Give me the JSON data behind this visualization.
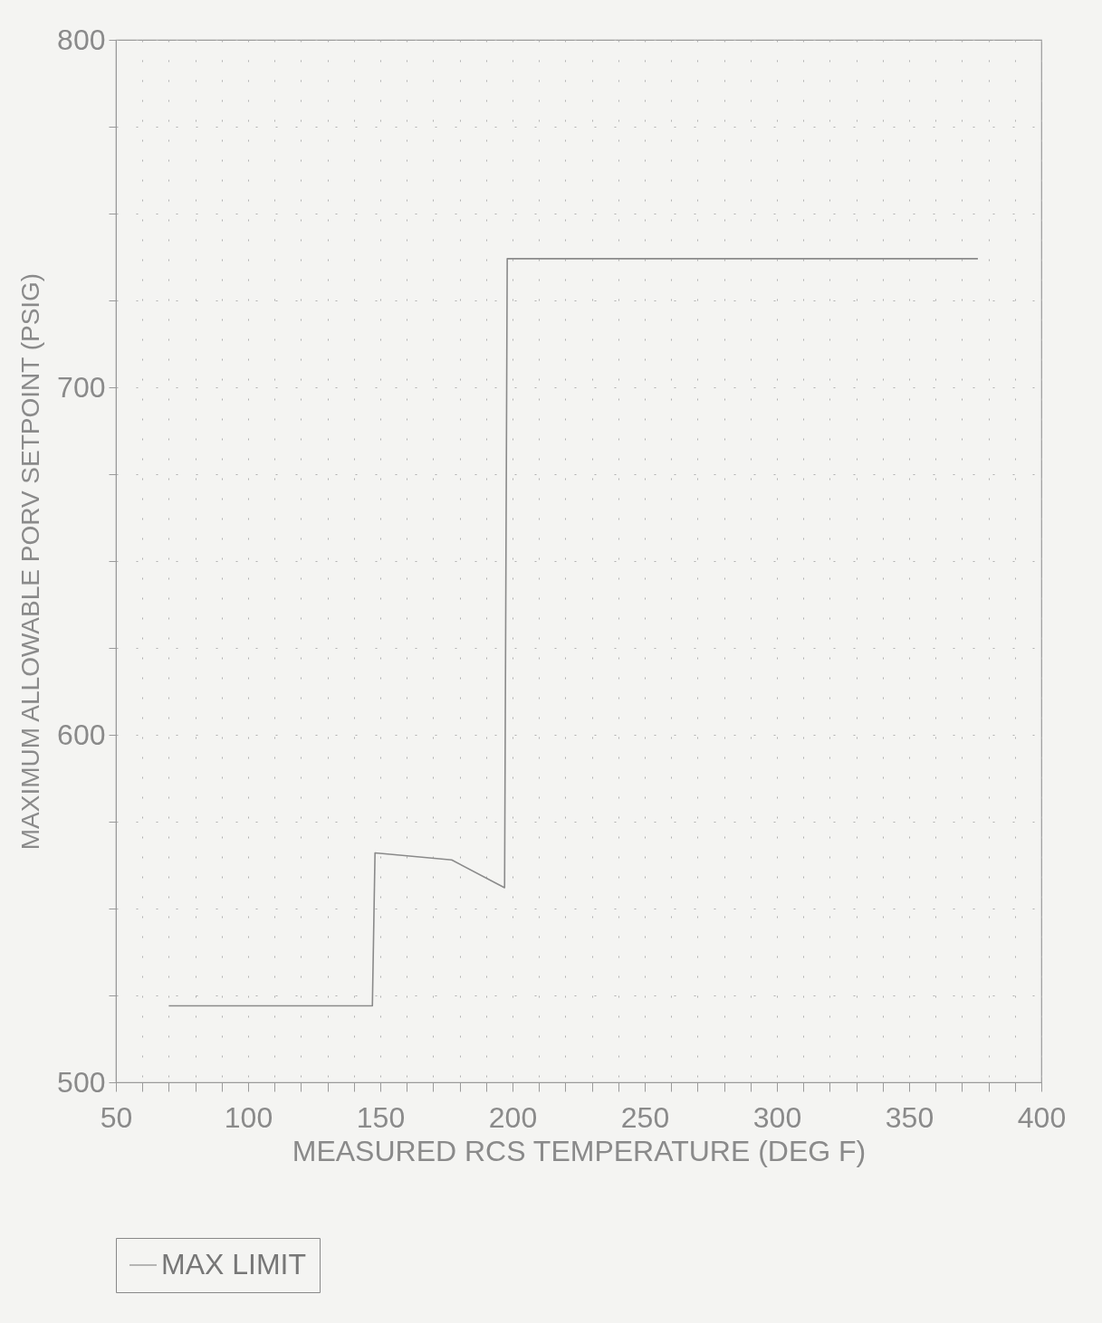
{
  "chart_data": {
    "type": "line",
    "xlabel": "MEASURED RCS TEMPERATURE (DEG F)",
    "ylabel": "MAXIMUM ALLOWABLE PORV SETPOINT (PSIG)",
    "series": [
      {
        "name": "MAX LIMIT",
        "color": "#8a8a8a",
        "x": [
          70,
          147,
          148,
          177,
          197,
          198,
          376
        ],
        "values": [
          522,
          522,
          566,
          564,
          556,
          737,
          737
        ]
      }
    ],
    "xlim": [
      50,
      400
    ],
    "xticks": [
      50,
      {
        "value": 60,
        "label": null
      },
      {
        "value": 70,
        "label": null
      },
      {
        "value": 80,
        "label": null
      },
      {
        "value": 90,
        "label": null
      },
      100,
      {
        "value": 110,
        "label": null
      },
      {
        "value": 120,
        "label": null
      },
      {
        "value": 130,
        "label": null
      },
      {
        "value": 140,
        "label": null
      },
      150,
      {
        "value": 160,
        "label": null
      },
      {
        "value": 170,
        "label": null
      },
      {
        "value": 180,
        "label": null
      },
      {
        "value": 190,
        "label": null
      },
      200,
      {
        "value": 210,
        "label": null
      },
      {
        "value": 220,
        "label": null
      },
      {
        "value": 230,
        "label": null
      },
      {
        "value": 240,
        "label": null
      },
      250,
      {
        "value": 260,
        "label": null
      },
      {
        "value": 270,
        "label": null
      },
      {
        "value": 280,
        "label": null
      },
      {
        "value": 290,
        "label": null
      },
      300,
      {
        "value": 310,
        "label": null
      },
      {
        "value": 320,
        "label": null
      },
      {
        "value": 330,
        "label": null
      },
      {
        "value": 340,
        "label": null
      },
      350,
      {
        "value": 360,
        "label": null
      },
      {
        "value": 370,
        "label": null
      },
      {
        "value": 380,
        "label": null
      },
      {
        "value": 390,
        "label": null
      },
      400
    ],
    "ylim": [
      500,
      800
    ],
    "yticks": [
      500,
      {
        "value": 525,
        "label": null
      },
      {
        "value": 550,
        "label": null
      },
      {
        "value": 575,
        "label": null
      },
      600,
      {
        "value": 625,
        "label": null
      },
      {
        "value": 650,
        "label": null
      },
      {
        "value": 675,
        "label": null
      },
      700,
      {
        "value": 725,
        "label": null
      },
      {
        "value": 750,
        "label": null
      },
      {
        "value": 775,
        "label": null
      },
      800
    ],
    "grid": true,
    "legend": "bottom",
    "line_style": "solid"
  }
}
